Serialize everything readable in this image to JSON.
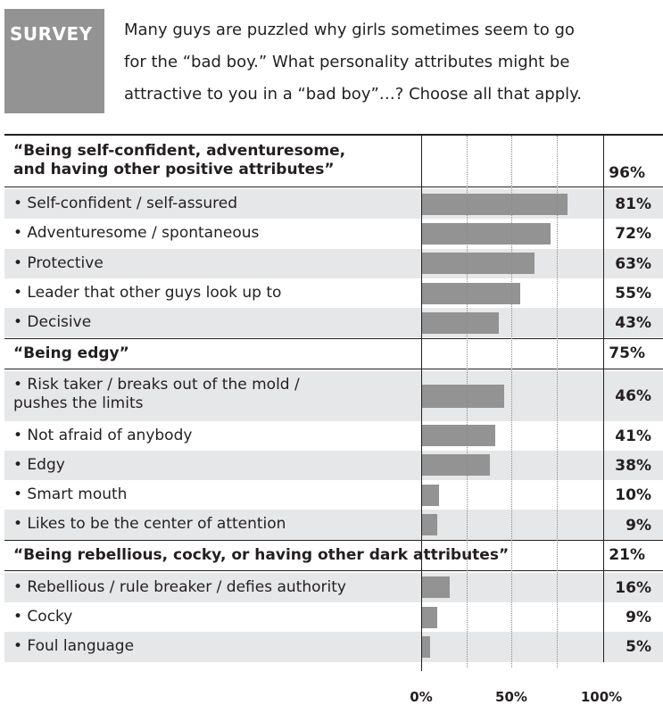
{
  "header": {
    "survey_label": "SURVEY",
    "question_lines": [
      "Many guys are puzzled why girls sometimes seem to go",
      "for the “bad boy.” What personality attributes might be",
      "attractive to you in a “bad boy”…? Choose all that apply."
    ]
  },
  "chart_data": {
    "type": "bar",
    "orientation": "horizontal",
    "xlim": [
      0,
      100
    ],
    "tick_labels": [
      "0%",
      "50%",
      "100%"
    ],
    "grid": true,
    "bar_color": "#939393",
    "row_shade": "#e6e7e8",
    "groups": [
      {
        "label": "“Being self-confident, adventuresome,\nand having other positive attributes”",
        "value": 96,
        "value_label": "96%",
        "items": [
          {
            "label": "•  Self-confident / self-assured",
            "value": 81,
            "value_label": "81%"
          },
          {
            "label": "•  Adventuresome / spontaneous",
            "value": 72,
            "value_label": "72%"
          },
          {
            "label": "•  Protective",
            "value": 63,
            "value_label": "63%"
          },
          {
            "label": "•  Leader that other guys look up to",
            "value": 55,
            "value_label": "55%"
          },
          {
            "label": "•  Decisive",
            "value": 43,
            "value_label": "43%"
          }
        ]
      },
      {
        "label": "“Being edgy”",
        "value": 75,
        "value_label": "75%",
        "items": [
          {
            "label": "•  Risk taker / breaks out of the mold /\n    pushes the limits",
            "value": 46,
            "value_label": "46%"
          },
          {
            "label": "•  Not afraid of anybody",
            "value": 41,
            "value_label": "41%"
          },
          {
            "label": "•  Edgy",
            "value": 38,
            "value_label": "38%"
          },
          {
            "label": "•  Smart mouth",
            "value": 10,
            "value_label": "10%"
          },
          {
            "label": "•  Likes to be the center of attention",
            "value": 9,
            "value_label": "9%"
          }
        ]
      },
      {
        "label": "“Being rebellious, cocky, or having other dark attributes”",
        "value": 21,
        "value_label": "21%",
        "items": [
          {
            "label": "•  Rebellious / rule breaker / defies authority",
            "value": 16,
            "value_label": "16%"
          },
          {
            "label": "•  Cocky",
            "value": 9,
            "value_label": "9%"
          },
          {
            "label": "•  Foul language",
            "value": 5,
            "value_label": "5%"
          }
        ]
      }
    ]
  }
}
